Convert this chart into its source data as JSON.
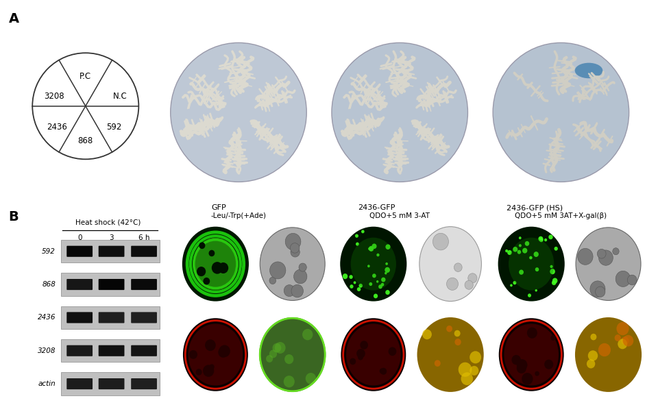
{
  "panel_A_label": "A",
  "panel_B_label": "B",
  "circle_labels": [
    "P.C",
    "N.C",
    "3208",
    "2436",
    "592",
    "868"
  ],
  "plate_captions": [
    "-Leu/-Trp(+Ade)",
    "QDO+5 mM 3-AT",
    "QDO+5 mM 3AT+X-gal(β)"
  ],
  "western_title": "Heat shock (42°C)",
  "western_timepoints": [
    "0",
    "3",
    "6 h"
  ],
  "western_genes": [
    "592",
    "868",
    "2436",
    "3208",
    "actin"
  ],
  "microscopy_labels": [
    "GFP",
    "2436-GFP",
    "2436-GFP (HS)"
  ],
  "bg_color": "#ffffff",
  "text_color": "#000000",
  "circle_color": "#333333",
  "plate_agar_color": "#c8cfd8",
  "plate_colony_color": "#e8e4d8",
  "photo_bg": "#111111",
  "gel_bg": "#b0b0b0",
  "gel_band_dark": "#1a1a1a",
  "gel_lane_bg": "#c4c4c4"
}
